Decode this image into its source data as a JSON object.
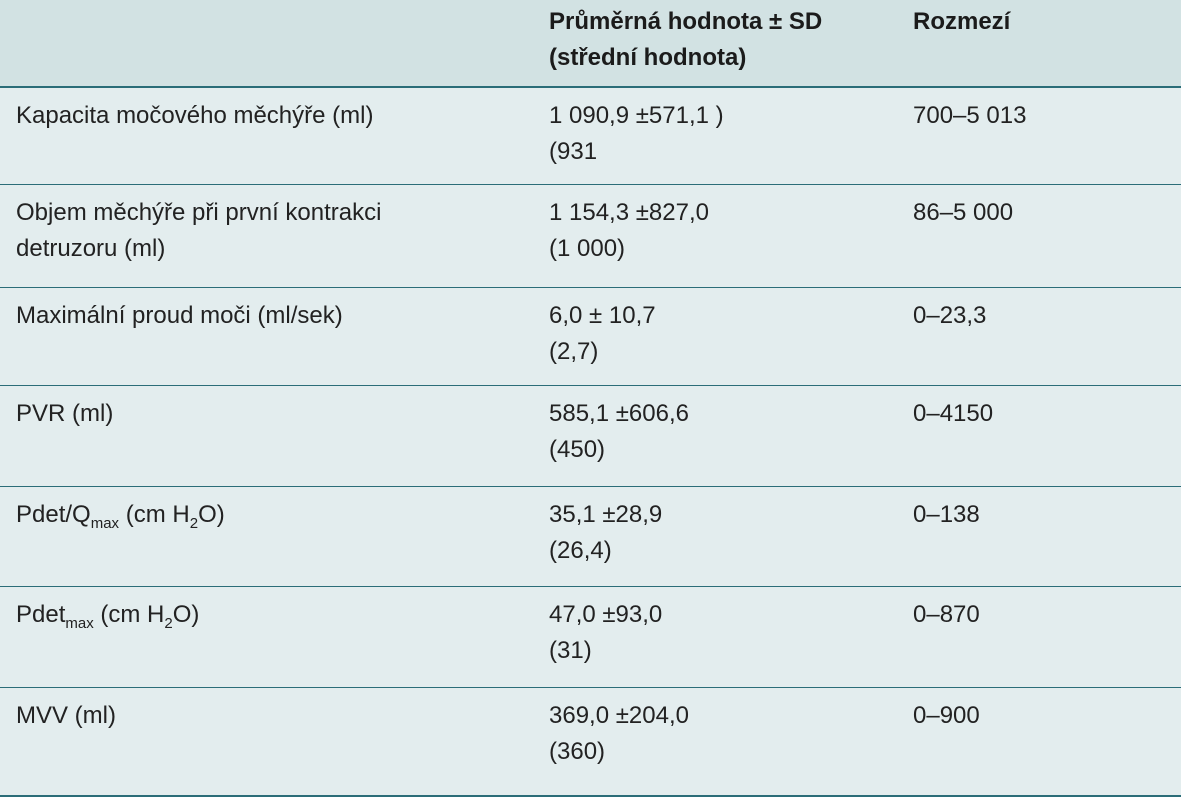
{
  "header": {
    "col1": "",
    "col2_line1": "Průměrná hodnota ± SD",
    "col2_line2": "(střední hodnota)",
    "col3": "Rozmezí"
  },
  "rows": [
    {
      "param_line1": "Kapacita močového měchýře (ml)",
      "param_line2": "",
      "value_line1": "1 090,9 ±571,1 )",
      "value_line2": "(931",
      "range": "700–5 013"
    },
    {
      "param_line1": "Objem měchýře při první kontrakci",
      "param_line2": "detruzoru (ml)",
      "value_line1": "1 154,3 ±827,0",
      "value_line2": "(1 000)",
      "range": "86–5 000"
    },
    {
      "param_line1": "Maximální proud moči (ml/sek)",
      "param_line2": "",
      "value_line1": "6,0 ± 10,7",
      "value_line2": "(2,7)",
      "range": "0–23,3"
    },
    {
      "param_line1": "PVR (ml)",
      "param_line2": "",
      "value_line1": "585,1 ±606,6",
      "value_line2": "(450)",
      "range": "0–4150"
    },
    {
      "param_a": "Pdet/Q",
      "param_sub1": "max",
      "param_b": " (cm H",
      "param_sub2": "2",
      "param_c": "O)",
      "value_line1": "35,1 ±28,9",
      "value_line2": "(26,4)",
      "range": "0–138"
    },
    {
      "param_a": "Pdet",
      "param_sub1": "max",
      "param_b": " (cm H",
      "param_sub2": "2",
      "param_c": "O)",
      "value_line1": "47,0 ±93,0",
      "value_line2": "(31)",
      "range": "0–870"
    },
    {
      "param_line1": "MVV (ml)",
      "param_line2": "",
      "value_line1": "369,0 ±204,0",
      "value_line2": "(360)",
      "range": "0–900"
    }
  ],
  "colors": {
    "header_bg": "#d2e2e3",
    "body_bg": "#e3edee",
    "rule": "#2b6d78"
  }
}
